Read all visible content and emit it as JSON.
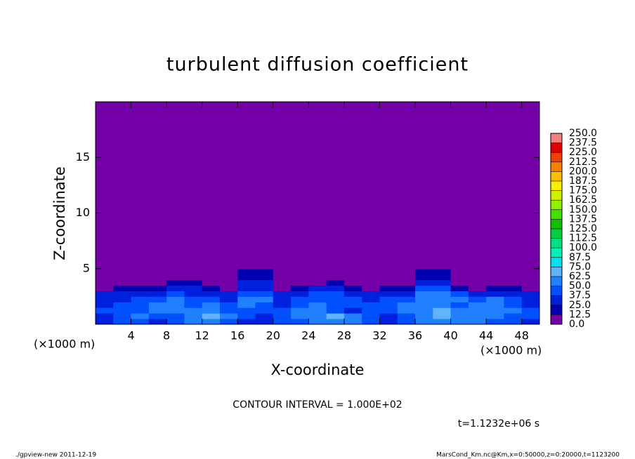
{
  "chart_data": {
    "type": "contour",
    "title": "turbulent diffusion coefficient",
    "xlabel": "X-coordinate",
    "ylabel": "Z-coordinate",
    "x_unit_label": "(×1000 m)",
    "y_unit_label": "(×1000 m)",
    "contour_interval": "CONTOUR INTERVAL = 1.000E+02",
    "time_label": "t=1.1232e+06 s",
    "footer_left": "./gpview-new   2011-12-19",
    "footer_right": "MarsCond_Km.nc@Km,x=0:50000,z=0:20000,t=1123200",
    "xlim": [
      0,
      50
    ],
    "ylim": [
      0,
      20
    ],
    "xticks": [
      4,
      8,
      12,
      16,
      20,
      24,
      28,
      32,
      36,
      40,
      44,
      48
    ],
    "yticks": [
      5,
      10,
      15
    ],
    "x_edges": [
      0,
      2,
      4,
      6,
      8,
      10,
      12,
      14,
      16,
      18,
      20,
      22,
      24,
      26,
      28,
      30,
      32,
      34,
      36,
      38,
      40,
      42,
      44,
      46,
      48,
      50
    ],
    "z_edges": [
      0,
      0.5,
      1,
      1.5,
      2,
      2.5,
      3,
      3.5,
      4,
      5,
      20
    ],
    "values": [
      [
        30,
        40,
        45,
        35,
        40,
        50,
        60,
        45,
        35,
        30,
        40,
        45,
        50,
        60,
        55,
        45,
        35,
        40,
        50,
        55,
        60,
        50,
        45,
        40,
        35
      ],
      [
        35,
        45,
        50,
        45,
        45,
        55,
        65,
        50,
        40,
        35,
        45,
        55,
        60,
        65,
        50,
        40,
        30,
        45,
        55,
        65,
        60,
        55,
        50,
        45,
        40
      ],
      [
        40,
        45,
        40,
        50,
        55,
        60,
        55,
        45,
        45,
        40,
        40,
        50,
        55,
        45,
        35,
        45,
        40,
        50,
        60,
        70,
        55,
        50,
        55,
        50,
        40
      ],
      [
        35,
        40,
        45,
        50,
        55,
        45,
        50,
        40,
        50,
        45,
        35,
        45,
        50,
        40,
        45,
        40,
        45,
        55,
        60,
        55,
        45,
        55,
        60,
        45,
        35
      ],
      [
        30,
        35,
        40,
        45,
        50,
        40,
        45,
        35,
        55,
        50,
        30,
        40,
        45,
        45,
        40,
        35,
        40,
        45,
        55,
        60,
        50,
        45,
        50,
        40,
        30
      ],
      [
        25,
        30,
        30,
        35,
        40,
        35,
        30,
        25,
        45,
        45,
        25,
        30,
        40,
        40,
        30,
        25,
        30,
        35,
        50,
        55,
        40,
        35,
        35,
        30,
        25
      ],
      [
        10,
        15,
        15,
        20,
        30,
        25,
        15,
        10,
        35,
        35,
        10,
        15,
        25,
        30,
        20,
        10,
        15,
        20,
        40,
        40,
        20,
        10,
        20,
        15,
        10
      ],
      [
        0,
        0,
        0,
        10,
        20,
        15,
        0,
        5,
        25,
        25,
        0,
        5,
        10,
        15,
        5,
        0,
        0,
        10,
        30,
        30,
        10,
        0,
        0,
        0,
        0
      ],
      [
        0,
        0,
        0,
        0,
        5,
        0,
        0,
        0,
        20,
        20,
        0,
        0,
        0,
        0,
        0,
        0,
        0,
        0,
        15,
        15,
        0,
        0,
        0,
        0,
        0
      ],
      [
        0,
        0,
        0,
        0,
        0,
        0,
        0,
        0,
        0,
        0,
        0,
        0,
        0,
        0,
        0,
        0,
        0,
        0,
        0,
        0,
        0,
        0,
        0,
        0,
        0
      ]
    ],
    "levels": [
      {
        "value": 0,
        "label": "0.0"
      },
      12.5,
      {
        "value": 25,
        "label": "25.0"
      },
      37.5,
      {
        "value": 50,
        "label": "50.0"
      },
      62.5,
      {
        "value": 75,
        "label": "75.0"
      },
      87.5,
      {
        "value": 100,
        "label": "100.0"
      },
      112.5,
      {
        "value": 125,
        "label": "125.0"
      },
      137.5,
      {
        "value": 150,
        "label": "150.0"
      },
      162.5,
      {
        "value": 175,
        "label": "175.0"
      },
      187.5,
      {
        "value": 200,
        "label": "200.0"
      },
      212.5,
      {
        "value": 225,
        "label": "225.0"
      },
      237.5,
      {
        "value": 250,
        "label": "250.0"
      }
    ],
    "colors": [
      "#7400a8",
      "#0000b0",
      "#0020e0",
      "#0050ff",
      "#2080ff",
      "#60b4ff",
      "#00e0f0",
      "#00f0c0",
      "#00e080",
      "#00d040",
      "#10c000",
      "#40e000",
      "#90f000",
      "#d0f000",
      "#f8f000",
      "#f8c000",
      "#f88000",
      "#f04000",
      "#e00000",
      "#f08080"
    ]
  }
}
